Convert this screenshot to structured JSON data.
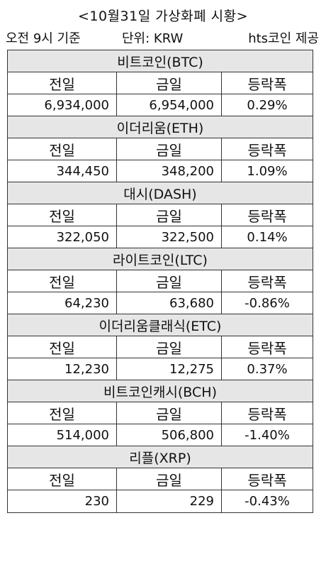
{
  "header": {
    "title": "<10월31일 가상화폐 시황>",
    "time_basis": "오전 9시 기준",
    "unit": "단위: KRW",
    "source": "hts코인 제공"
  },
  "columns": {
    "prev": "전일",
    "today": "금일",
    "change": "등락폭"
  },
  "coins": [
    {
      "name": "비트코인(BTC)",
      "prev": "6,934,000",
      "today": "6,954,000",
      "change": "0.29%"
    },
    {
      "name": "이더리움(ETH)",
      "prev": "344,450",
      "today": "348,200",
      "change": "1.09%"
    },
    {
      "name": "대시(DASH)",
      "prev": "322,050",
      "today": "322,500",
      "change": "0.14%"
    },
    {
      "name": "라이트코인(LTC)",
      "prev": "64,230",
      "today": "63,680",
      "change": "-0.86%"
    },
    {
      "name": "이더리움클래식(ETC)",
      "prev": "12,230",
      "today": "12,275",
      "change": "0.37%"
    },
    {
      "name": "비트코인캐시(BCH)",
      "prev": "514,000",
      "today": "506,800",
      "change": "-1.40%"
    },
    {
      "name": "리플(XRP)",
      "prev": "230",
      "today": "229",
      "change": "-0.43%"
    }
  ]
}
